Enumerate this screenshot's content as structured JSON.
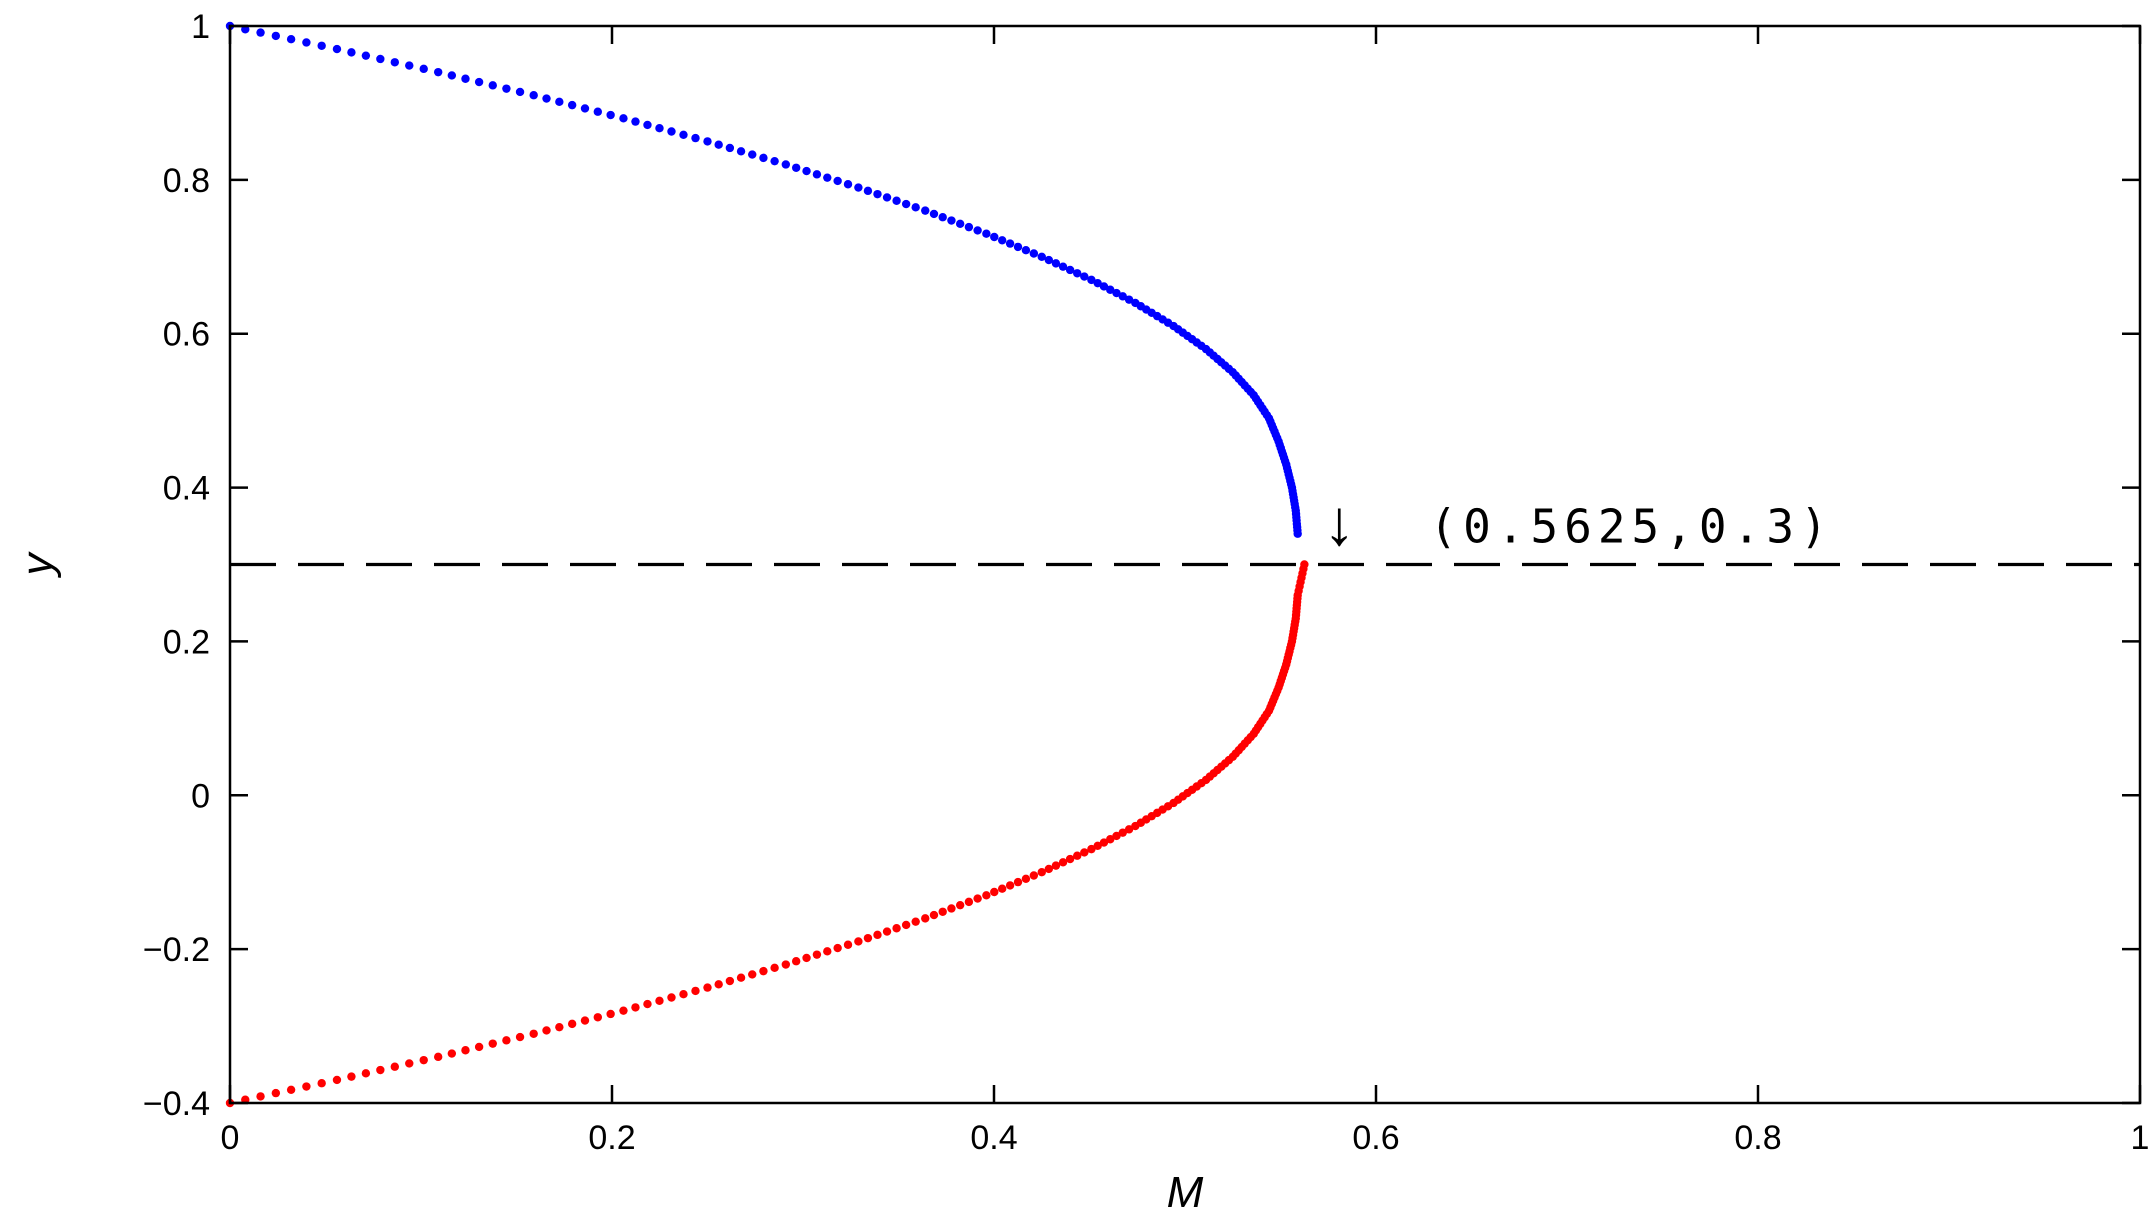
{
  "chart_data": {
    "type": "scatter",
    "xlabel": "M",
    "ylabel": "y",
    "xlim": [
      0,
      1
    ],
    "ylim": [
      -0.4,
      1
    ],
    "x_ticks": [
      "0",
      "0.2",
      "0.4",
      "0.6",
      "0.8",
      "1"
    ],
    "y_ticks": [
      "−0.4",
      "−0.2",
      "0",
      "0.2",
      "0.4",
      "0.6",
      "0.8",
      "1"
    ],
    "grid": false,
    "series": [
      {
        "color": "#0000ff",
        "marker": "dot",
        "points": [
          [
            0,
            1.0
          ],
          [
            0.056,
            0.97
          ],
          [
            0.109,
            0.94
          ],
          [
            0.159,
            0.91
          ],
          [
            0.206,
            0.88
          ],
          [
            0.25,
            0.85
          ],
          [
            0.291,
            0.82
          ],
          [
            0.329,
            0.79
          ],
          [
            0.364,
            0.76
          ],
          [
            0.396,
            0.73
          ],
          [
            0.425,
            0.7
          ],
          [
            0.451,
            0.67
          ],
          [
            0.474,
            0.64
          ],
          [
            0.494,
            0.61
          ],
          [
            0.511,
            0.58
          ],
          [
            0.525,
            0.55
          ],
          [
            0.536,
            0.52
          ],
          [
            0.544,
            0.49
          ],
          [
            0.549,
            0.46
          ],
          [
            0.553,
            0.43
          ],
          [
            0.556,
            0.4
          ],
          [
            0.558,
            0.37
          ],
          [
            0.559,
            0.34
          ]
        ]
      },
      {
        "color": "#ff0000",
        "marker": "dot",
        "points": [
          [
            0,
            -0.4
          ],
          [
            0.056,
            -0.37
          ],
          [
            0.109,
            -0.34
          ],
          [
            0.159,
            -0.31
          ],
          [
            0.206,
            -0.28
          ],
          [
            0.25,
            -0.25
          ],
          [
            0.291,
            -0.22
          ],
          [
            0.329,
            -0.19
          ],
          [
            0.364,
            -0.16
          ],
          [
            0.396,
            -0.13
          ],
          [
            0.425,
            -0.1
          ],
          [
            0.451,
            -0.07
          ],
          [
            0.474,
            -0.04
          ],
          [
            0.494,
            -0.01
          ],
          [
            0.511,
            0.02
          ],
          [
            0.525,
            0.05
          ],
          [
            0.536,
            0.08
          ],
          [
            0.544,
            0.11
          ],
          [
            0.549,
            0.14
          ],
          [
            0.553,
            0.17
          ],
          [
            0.556,
            0.2
          ],
          [
            0.558,
            0.23
          ],
          [
            0.559,
            0.26
          ],
          [
            0.5625,
            0.3
          ]
        ]
      }
    ],
    "reference_line": {
      "y": 0.3,
      "style": "dashed",
      "color": "#000000"
    },
    "annotation": {
      "text": "(0.5625,0.3)",
      "arrow": "↓",
      "point": [
        0.5625,
        0.3
      ]
    }
  }
}
